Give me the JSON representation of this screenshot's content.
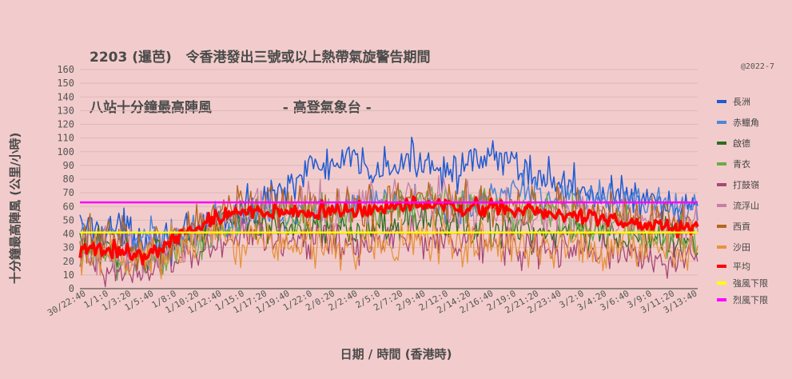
{
  "title": {
    "line1": "2203 (暹芭)   令香港發出三號或以上熱帶氣旋警告期間",
    "line2": "八站十分鐘最高陣風               - 高登氣象台 -"
  },
  "copyright": "@2022-7",
  "chart_data": {
    "type": "line",
    "ylabel": "十分鐘最高陣風  (公里/小時)",
    "xlabel": "日期  /  時間  (香港時)",
    "ylim": [
      0,
      160
    ],
    "yticks": [
      0,
      10,
      20,
      30,
      40,
      50,
      60,
      70,
      80,
      90,
      100,
      110,
      120,
      130,
      140,
      150,
      160
    ],
    "grid": true,
    "legend_position": "right",
    "x_tick_labels": [
      "30/22:40",
      "1/1:0",
      "1/3:20",
      "1/5:40",
      "1/8:0",
      "1/10:20",
      "1/12:40",
      "1/15:0",
      "1/17:20",
      "1/19:40",
      "1/22:0",
      "2/0:20",
      "2/2:40",
      "2/5:0",
      "2/7:20",
      "2/9:40",
      "2/12:0",
      "2/14:20",
      "2/16:40",
      "2/19:0",
      "2/21:20",
      "2/23:40",
      "3/2:0",
      "3/4:20",
      "3/6:40",
      "3/9:0",
      "3/11:20",
      "3/13:40"
    ],
    "n_points": 366,
    "series": [
      {
        "name": "長洲",
        "color": "#1f5bd1",
        "width": 1.5,
        "kp": [
          45,
          45,
          42,
          38,
          35,
          38,
          50,
          55,
          62,
          75,
          88,
          90,
          92,
          86,
          90,
          95,
          88,
          88,
          95,
          92,
          82,
          78,
          72,
          68,
          68,
          60,
          58,
          58
        ],
        "noise": 7
      },
      {
        "name": "赤鱲角",
        "color": "#4f86d8",
        "width": 1.5,
        "kp": [
          38,
          38,
          38,
          38,
          40,
          42,
          48,
          52,
          55,
          55,
          55,
          55,
          56,
          60,
          62,
          65,
          60,
          58,
          70,
          72,
          70,
          68,
          65,
          65,
          62,
          60,
          60,
          58
        ],
        "noise": 6
      },
      {
        "name": "啟德",
        "color": "#2f6b1f",
        "width": 1.3,
        "kp": [
          30,
          30,
          28,
          26,
          32,
          40,
          48,
          50,
          48,
          46,
          46,
          44,
          42,
          44,
          48,
          50,
          48,
          46,
          46,
          40,
          40,
          42,
          40,
          38,
          38,
          36,
          36,
          34
        ],
        "noise": 7
      },
      {
        "name": "青衣",
        "color": "#6cab49",
        "width": 1.3,
        "kp": [
          22,
          24,
          22,
          20,
          26,
          35,
          42,
          48,
          52,
          55,
          56,
          56,
          58,
          60,
          62,
          64,
          62,
          60,
          58,
          54,
          55,
          52,
          50,
          48,
          45,
          42,
          40,
          38
        ],
        "noise": 8
      },
      {
        "name": "打鼓嶺",
        "color": "#a64876",
        "width": 1.3,
        "kp": [
          18,
          16,
          16,
          14,
          18,
          26,
          34,
          40,
          40,
          38,
          36,
          34,
          32,
          34,
          36,
          38,
          36,
          34,
          34,
          30,
          28,
          28,
          28,
          26,
          26,
          24,
          24,
          24
        ],
        "noise": 7
      },
      {
        "name": "流浮山",
        "color": "#c77fa5",
        "width": 1.3,
        "kp": [
          28,
          28,
          26,
          24,
          30,
          40,
          50,
          56,
          60,
          62,
          62,
          60,
          60,
          62,
          64,
          66,
          64,
          62,
          60,
          55,
          56,
          56,
          54,
          52,
          50,
          48,
          46,
          44
        ],
        "noise": 8
      },
      {
        "name": "西貢",
        "color": "#b5651d",
        "width": 1.3,
        "kp": [
          35,
          35,
          32,
          30,
          38,
          48,
          60,
          64,
          62,
          60,
          60,
          58,
          58,
          60,
          62,
          64,
          62,
          60,
          62,
          58,
          60,
          62,
          58,
          55,
          52,
          50,
          48,
          46
        ],
        "noise": 8
      },
      {
        "name": "沙田",
        "color": "#e7923c",
        "width": 1.3,
        "kp": [
          20,
          20,
          20,
          22,
          28,
          35,
          38,
          38,
          36,
          34,
          34,
          32,
          30,
          32,
          34,
          36,
          36,
          34,
          34,
          32,
          32,
          32,
          30,
          30,
          30,
          30,
          30,
          30
        ],
        "noise": 8
      },
      {
        "name": "平均",
        "color": "#ff0000",
        "width": 3.5,
        "kp": [
          28,
          28,
          26,
          25,
          35,
          44,
          52,
          56,
          56,
          57,
          57,
          56,
          56,
          58,
          60,
          62,
          60,
          58,
          60,
          56,
          57,
          56,
          53,
          50,
          48,
          46,
          45,
          44
        ],
        "noise": 3
      },
      {
        "name": "強風下限",
        "color": "#ffff00",
        "width": 2.5,
        "value": 41
      },
      {
        "name": "烈風下限",
        "color": "#ff00ff",
        "width": 2.5,
        "value": 63
      }
    ]
  }
}
